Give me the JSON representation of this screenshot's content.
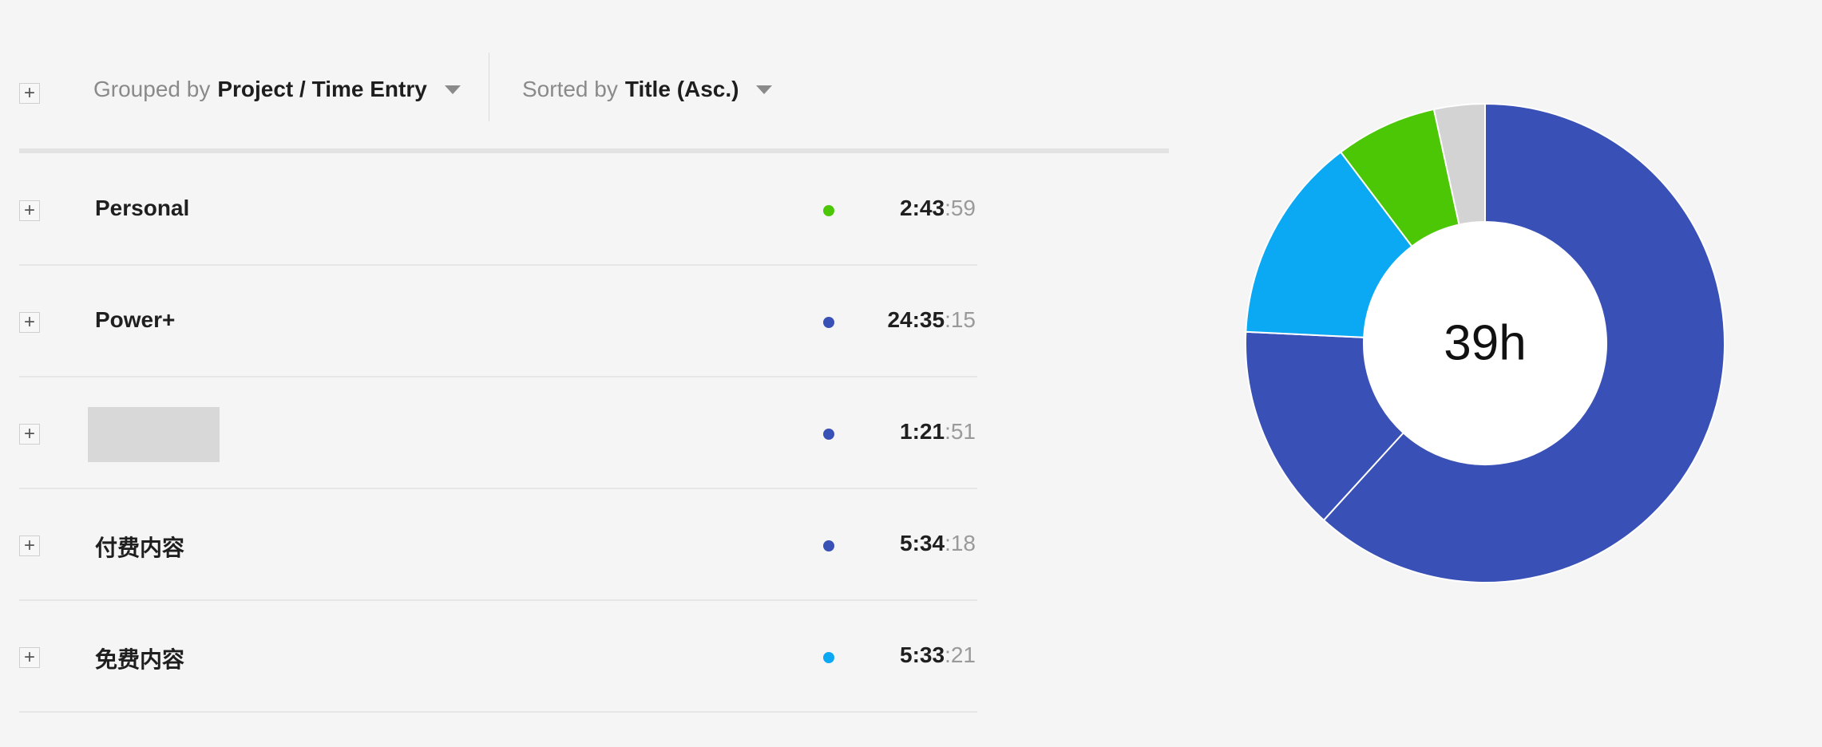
{
  "toolbar": {
    "group_prefix": "Grouped by",
    "group_value": "Project / Time Entry",
    "sort_prefix": "Sorted by",
    "sort_value": "Title (Asc.)"
  },
  "projects": [
    {
      "title": "Personal",
      "color": "#4cc706",
      "duration_main": "2:43",
      "duration_sec": ":59"
    },
    {
      "title": "Power+",
      "color": "#3951b6",
      "duration_main": "24:35",
      "duration_sec": ":15"
    },
    {
      "title": "",
      "redacted": true,
      "color": "#3951b6",
      "duration_main": "1:21",
      "duration_sec": ":51"
    },
    {
      "title": "付费内容",
      "color": "#3951b6",
      "duration_main": "5:34",
      "duration_sec": ":18"
    },
    {
      "title": "免费内容",
      "color": "#0ba8f4",
      "duration_main": "5:33",
      "duration_sec": ":21"
    }
  ],
  "chart_data": {
    "type": "pie",
    "donut": true,
    "center_label": "39h",
    "values_minutes": [
      1475.25,
      334.3,
      333.35,
      163.98,
      81.85
    ],
    "colors": [
      "#3951b6",
      "#3951b6",
      "#0ba8f4",
      "#4cc706",
      "#d3d3d3"
    ]
  }
}
